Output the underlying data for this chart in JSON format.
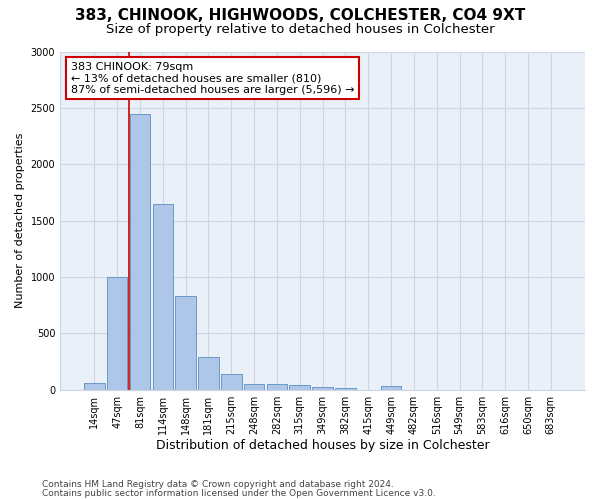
{
  "title_line1": "383, CHINOOK, HIGHWOODS, COLCHESTER, CO4 9XT",
  "title_line2": "Size of property relative to detached houses in Colchester",
  "xlabel": "Distribution of detached houses by size in Colchester",
  "ylabel": "Number of detached properties",
  "categories": [
    "14sqm",
    "47sqm",
    "81sqm",
    "114sqm",
    "148sqm",
    "181sqm",
    "215sqm",
    "248sqm",
    "282sqm",
    "315sqm",
    "349sqm",
    "382sqm",
    "415sqm",
    "449sqm",
    "482sqm",
    "516sqm",
    "549sqm",
    "583sqm",
    "616sqm",
    "650sqm",
    "683sqm"
  ],
  "values": [
    60,
    1000,
    2450,
    1650,
    830,
    290,
    135,
    55,
    55,
    40,
    25,
    15,
    0,
    30,
    0,
    0,
    0,
    0,
    0,
    0,
    0
  ],
  "bar_color": "#aec6e8",
  "bar_edge_color": "#5a8fc2",
  "annotation_text": "383 CHINOOK: 79sqm\n← 13% of detached houses are smaller (810)\n87% of semi-detached houses are larger (5,596) →",
  "annotation_box_color": "#ffffff",
  "annotation_box_edge_color": "#cc0000",
  "vline_x_index": 2,
  "ylim": [
    0,
    3000
  ],
  "yticks": [
    0,
    500,
    1000,
    1500,
    2000,
    2500,
    3000
  ],
  "grid_color": "#ced6e5",
  "bg_color": "#eaf0f8",
  "footer_line1": "Contains HM Land Registry data © Crown copyright and database right 2024.",
  "footer_line2": "Contains public sector information licensed under the Open Government Licence v3.0.",
  "title_fontsize": 11,
  "subtitle_fontsize": 9.5,
  "xlabel_fontsize": 9,
  "ylabel_fontsize": 8,
  "tick_fontsize": 7,
  "annotation_fontsize": 8,
  "footer_fontsize": 6.5
}
